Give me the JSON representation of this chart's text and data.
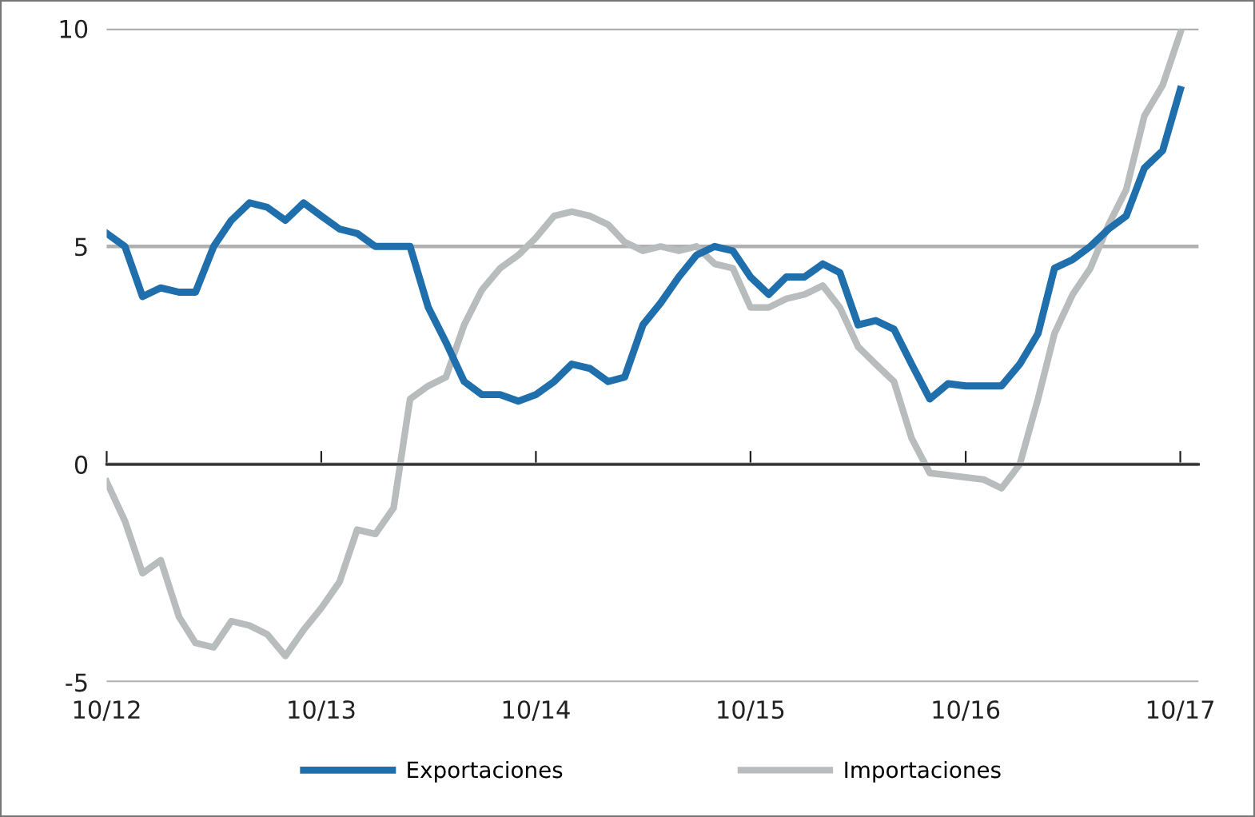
{
  "chart_data": {
    "type": "line",
    "x": [
      "2012-10",
      "2012-11",
      "2012-12",
      "2013-01",
      "2013-02",
      "2013-03",
      "2013-04",
      "2013-05",
      "2013-06",
      "2013-07",
      "2013-08",
      "2013-09",
      "2013-10",
      "2013-11",
      "2013-12",
      "2014-01",
      "2014-02",
      "2014-03",
      "2014-04",
      "2014-05",
      "2014-06",
      "2014-07",
      "2014-08",
      "2014-09",
      "2014-10",
      "2014-11",
      "2014-12",
      "2015-01",
      "2015-02",
      "2015-03",
      "2015-04",
      "2015-05",
      "2015-06",
      "2015-07",
      "2015-08",
      "2015-09",
      "2015-10",
      "2015-11",
      "2015-12",
      "2016-01",
      "2016-02",
      "2016-03",
      "2016-04",
      "2016-05",
      "2016-06",
      "2016-07",
      "2016-08",
      "2016-09",
      "2016-10",
      "2016-11",
      "2016-12",
      "2017-01",
      "2017-02",
      "2017-03",
      "2017-04",
      "2017-05",
      "2017-06",
      "2017-07",
      "2017-08",
      "2017-09",
      "2017-10"
    ],
    "series": [
      {
        "name": "Exportaciones",
        "color": "#1f6fad",
        "values": [
          5.3,
          5.0,
          3.85,
          4.05,
          3.95,
          3.95,
          5.0,
          5.6,
          6.0,
          5.9,
          5.6,
          6.0,
          5.7,
          5.4,
          5.3,
          5.0,
          5.0,
          5.0,
          3.6,
          2.8,
          1.9,
          1.6,
          1.6,
          1.45,
          1.6,
          1.9,
          2.3,
          2.2,
          1.9,
          2.0,
          3.2,
          3.7,
          4.3,
          4.8,
          5.0,
          4.9,
          4.3,
          3.9,
          4.3,
          4.3,
          4.6,
          4.4,
          3.2,
          3.3,
          3.1,
          2.3,
          1.5,
          1.85,
          1.8,
          1.8,
          1.8,
          2.3,
          3.0,
          4.5,
          4.7,
          5.0,
          5.4,
          5.7,
          6.8,
          7.2,
          8.6
        ]
      },
      {
        "name": "Importaciones",
        "color": "#b8bcbd",
        "values": [
          -0.4,
          -1.3,
          -2.5,
          -2.2,
          -3.5,
          -4.1,
          -4.2,
          -3.6,
          -3.7,
          -3.9,
          -4.4,
          -3.8,
          -3.3,
          -2.7,
          -1.5,
          -1.6,
          -1.0,
          1.5,
          1.8,
          2.0,
          3.2,
          4.0,
          4.5,
          4.8,
          5.2,
          5.7,
          5.8,
          5.7,
          5.5,
          5.1,
          4.9,
          5.0,
          4.9,
          5.0,
          4.6,
          4.5,
          3.6,
          3.6,
          3.8,
          3.9,
          4.1,
          3.6,
          2.7,
          2.3,
          1.9,
          0.6,
          -0.2,
          -0.25,
          -0.3,
          -0.35,
          -0.55,
          0.0,
          1.5,
          3.0,
          3.9,
          4.5,
          5.5,
          6.3,
          8.0,
          8.7,
          9.9
        ]
      }
    ],
    "xlim": [
      "2012-10",
      "2017-11"
    ],
    "xticks": [
      {
        "value": "2012-10",
        "label": "10/12"
      },
      {
        "value": "2013-10",
        "label": "10/13"
      },
      {
        "value": "2014-10",
        "label": "10/14"
      },
      {
        "value": "2015-10",
        "label": "10/15"
      },
      {
        "value": "2016-10",
        "label": "10/16"
      },
      {
        "value": "2017-10",
        "label": "10/17"
      }
    ],
    "ylim": [
      -5,
      10
    ],
    "yticks": [
      -5,
      0,
      5,
      10
    ],
    "grid": "y",
    "legend": "bottom",
    "marker": "none",
    "line_style": "solid"
  }
}
